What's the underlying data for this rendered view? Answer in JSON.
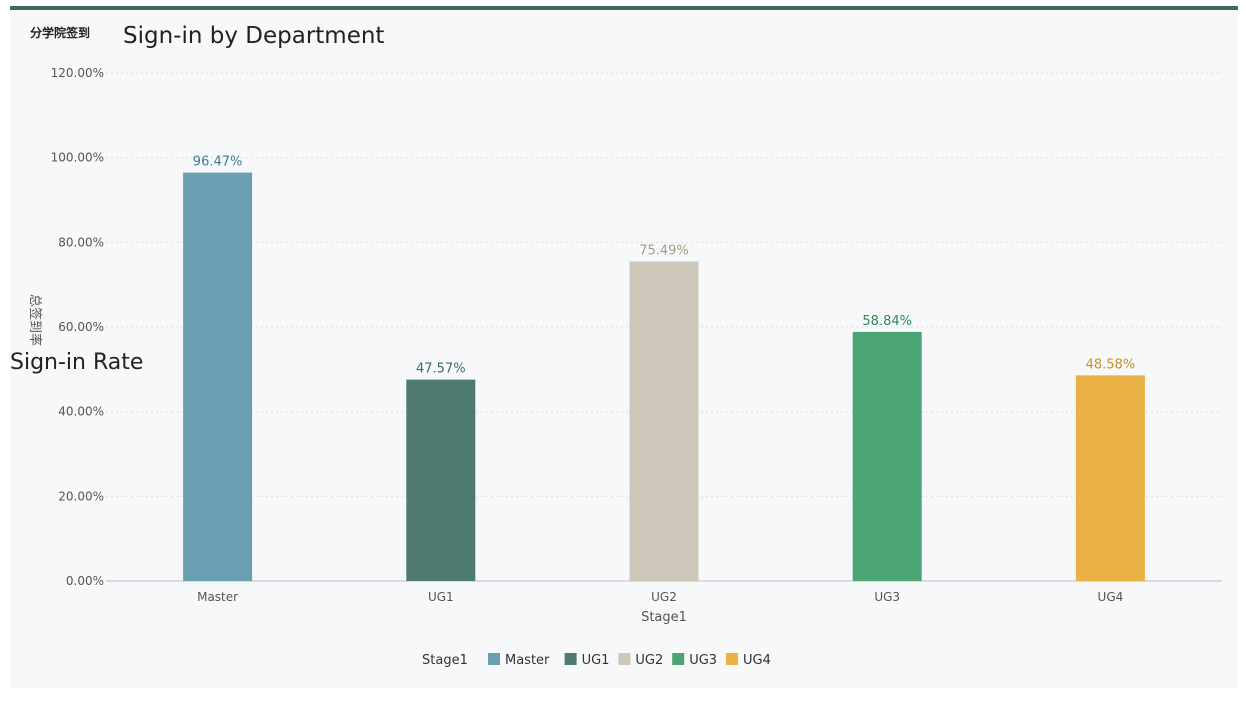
{
  "title_cn": "分学院签到",
  "title_en": "Sign-in by Department",
  "y_overlay_label": "Sign-in Rate",
  "y_axis_title": "总签到率",
  "colors": {
    "border_top": "#3f6b5e",
    "panel_bg": "#f6f8fa"
  },
  "chart_data": {
    "type": "bar",
    "categories": [
      "Master",
      "UG1",
      "UG2",
      "UG3",
      "UG4"
    ],
    "values": [
      96.47,
      47.57,
      75.49,
      58.84,
      48.58
    ],
    "value_labels": [
      "96.47%",
      "47.57%",
      "75.49%",
      "58.84%",
      "48.58%"
    ],
    "colors": [
      "#6a9fb2",
      "#4e7a72",
      "#cdc8b9",
      "#4aa473",
      "#e9b146"
    ],
    "label_colors": [
      "#3f7d95",
      "#3e6a60",
      "#a89c7c",
      "#2f8a57",
      "#c99323"
    ],
    "xlabel": "Stage1",
    "ylabel": "总签到率",
    "ylim": [
      0,
      120
    ],
    "yticks": [
      0,
      20,
      40,
      60,
      80,
      100,
      120
    ],
    "ytick_labels": [
      "0.00%",
      "20.00%",
      "40.00%",
      "60.00%",
      "80.00%",
      "100.00%",
      "120.00%"
    ],
    "grid": true,
    "legend": {
      "title": "Stage1",
      "position": "bottom",
      "entries": [
        "Master",
        "UG1",
        "UG2",
        "UG3",
        "UG4"
      ]
    }
  }
}
